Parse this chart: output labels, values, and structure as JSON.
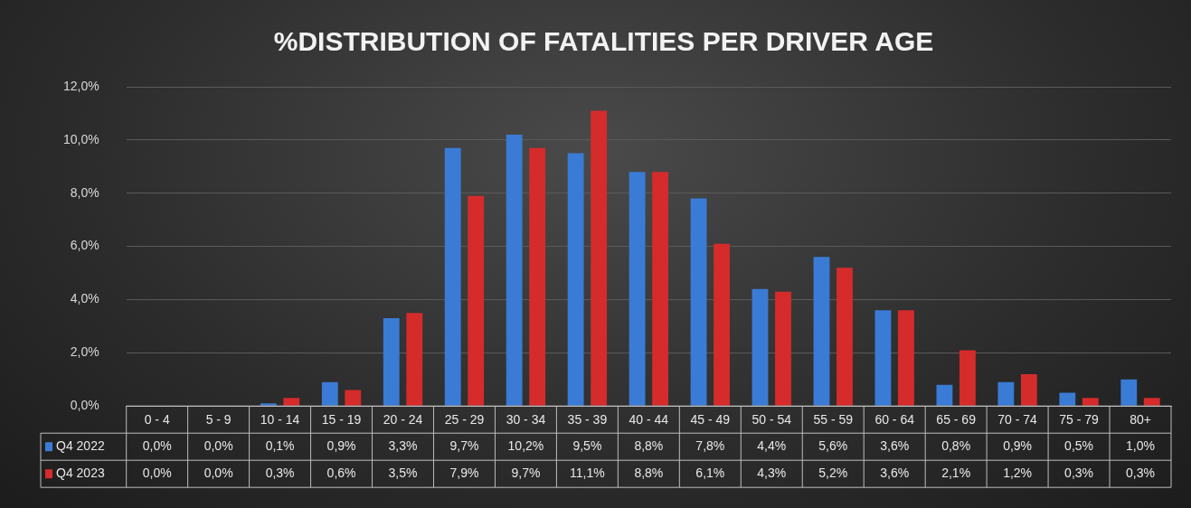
{
  "chart_data": {
    "type": "bar",
    "title": "%DISTRIBUTION OF FATALITIES PER DRIVER AGE",
    "categories": [
      "0 - 4",
      "5 - 9",
      "10 - 14",
      "15 - 19",
      "20 - 24",
      "25 - 29",
      "30 - 34",
      "35 - 39",
      "40 - 44",
      "45 - 49",
      "50 - 54",
      "55 - 59",
      "60 - 64",
      "65 - 69",
      "70 - 74",
      "75 - 79",
      "80+"
    ],
    "series": [
      {
        "name": "Q4 2022",
        "color": "#3a7bd5",
        "values": [
          0.0,
          0.0,
          0.1,
          0.9,
          3.3,
          9.7,
          10.2,
          9.5,
          8.8,
          7.8,
          4.4,
          5.6,
          3.6,
          0.8,
          0.9,
          0.5,
          1.0
        ],
        "value_labels": [
          "0,0%",
          "0,0%",
          "0,1%",
          "0,9%",
          "3,3%",
          "9,7%",
          "10,2%",
          "9,5%",
          "8,8%",
          "7,8%",
          "4,4%",
          "5,6%",
          "3,6%",
          "0,8%",
          "0,9%",
          "0,5%",
          "1,0%"
        ]
      },
      {
        "name": "Q4 2023",
        "color": "#d62b2b",
        "values": [
          0.0,
          0.0,
          0.3,
          0.6,
          3.5,
          7.9,
          9.7,
          11.1,
          8.8,
          6.1,
          4.3,
          5.2,
          3.6,
          2.1,
          1.2,
          0.3,
          0.3
        ],
        "value_labels": [
          "0,0%",
          "0,0%",
          "0,3%",
          "0,6%",
          "3,5%",
          "7,9%",
          "9,7%",
          "11,1%",
          "8,8%",
          "6,1%",
          "4,3%",
          "5,2%",
          "3,6%",
          "2,1%",
          "1,2%",
          "0,3%",
          "0,3%"
        ]
      }
    ],
    "ylim": [
      0,
      12
    ],
    "yticks": [
      {
        "value": 0,
        "label": "0,0%"
      },
      {
        "value": 2,
        "label": "2,0%"
      },
      {
        "value": 4,
        "label": "4,0%"
      },
      {
        "value": 6,
        "label": "6,0%"
      },
      {
        "value": 8,
        "label": "8,0%"
      },
      {
        "value": 10,
        "label": "10,0%"
      },
      {
        "value": 12,
        "label": "12,0%"
      }
    ],
    "grid": "y",
    "legend": "bottom"
  }
}
